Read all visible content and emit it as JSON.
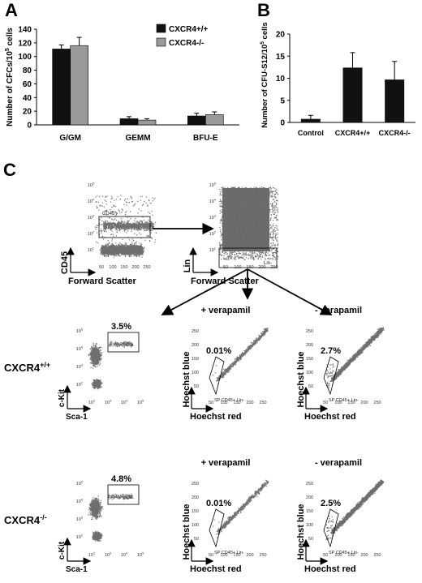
{
  "panel_letters": {
    "a": "A",
    "b": "B",
    "c": "C"
  },
  "colors": {
    "wt": "#111111",
    "ko": "#999999",
    "dots": "#6e6e6e",
    "axis": "#000000"
  },
  "chart_data": [
    {
      "type": "bar",
      "panel": "A",
      "categories": [
        "G/GM",
        "GEMM",
        "BFU-E"
      ],
      "series": [
        {
          "name": "CXCR4+/+",
          "values": [
            111,
            9,
            13
          ],
          "errors": [
            6,
            3,
            4
          ]
        },
        {
          "name": "CXCR4-/-",
          "values": [
            116,
            7,
            15
          ],
          "errors": [
            12,
            2,
            4
          ]
        }
      ],
      "ylabel_parts": [
        "Number of CFCs/10",
        "5",
        " cells"
      ],
      "ylim": [
        0,
        140
      ],
      "yticks": [
        "0",
        "20",
        "40",
        "60",
        "80",
        "100",
        "120",
        "140"
      ],
      "legend": "top-right",
      "grid": false
    },
    {
      "type": "bar",
      "panel": "B",
      "categories": [
        "Control",
        "CXCR4+/+",
        "CXCR4-/-"
      ],
      "values": [
        0.8,
        12.4,
        9.7
      ],
      "errors": [
        0.8,
        3.4,
        4.1
      ],
      "ylabel_parts": [
        "Number of CFU-S12/10",
        "5",
        " cells"
      ],
      "ylim": [
        0,
        20
      ],
      "yticks": [
        "0",
        "5",
        "10",
        "15",
        "20"
      ],
      "grid": false
    }
  ],
  "panel_c": {
    "top_left": {
      "ylabel": "CD45",
      "xlabel": "Forward Scatter",
      "gate": "CD45+",
      "xticks": [
        "50",
        "100",
        "150",
        "200",
        "250"
      ],
      "yticks": [
        "10",
        "10",
        "10",
        "10",
        "10"
      ],
      "ytick_exp": [
        "1",
        "2",
        "3",
        "4",
        "5"
      ]
    },
    "top_right": {
      "ylabel": "Lin",
      "xlabel": "Forward Scatter",
      "gate": "Lin-",
      "xticks": [
        "50",
        "100",
        "150",
        "200",
        "250"
      ],
      "yticks": [
        "10",
        "10",
        "10",
        "10",
        "10"
      ],
      "ytick_exp": [
        "1",
        "2",
        "3",
        "4",
        "5"
      ]
    },
    "row_labels": [
      {
        "base": "CXCR4",
        "sup": "+/+"
      },
      {
        "base": "CXCR4",
        "sup": "-/-"
      }
    ],
    "kit_plot": {
      "ylabel": "c-Kit",
      "xlabel": "Sca-1",
      "gate": "KSL",
      "xticks": [
        "10",
        "10",
        "10",
        "10"
      ],
      "xtick_exp": [
        "2",
        "3",
        "4",
        "5"
      ],
      "yticks": [
        "10",
        "10",
        "10",
        "10"
      ],
      "ytick_exp": [
        "2",
        "3",
        "4",
        "5"
      ]
    },
    "hoechst_plot": {
      "ylabel": "Hoechst blue",
      "xlabel": "Hoechst red",
      "gate": "SP CD45+ Lin-",
      "ticks": [
        "50",
        "100",
        "150",
        "200",
        "250"
      ]
    },
    "conditions": [
      "+ verapamil",
      "- verapamil"
    ],
    "rows": [
      {
        "ksl_pct": "3.5%",
        "sp_plus": "0.01%",
        "sp_minus": "2.7%"
      },
      {
        "ksl_pct": "4.8%",
        "sp_plus": "0.01%",
        "sp_minus": "2.5%"
      }
    ]
  }
}
